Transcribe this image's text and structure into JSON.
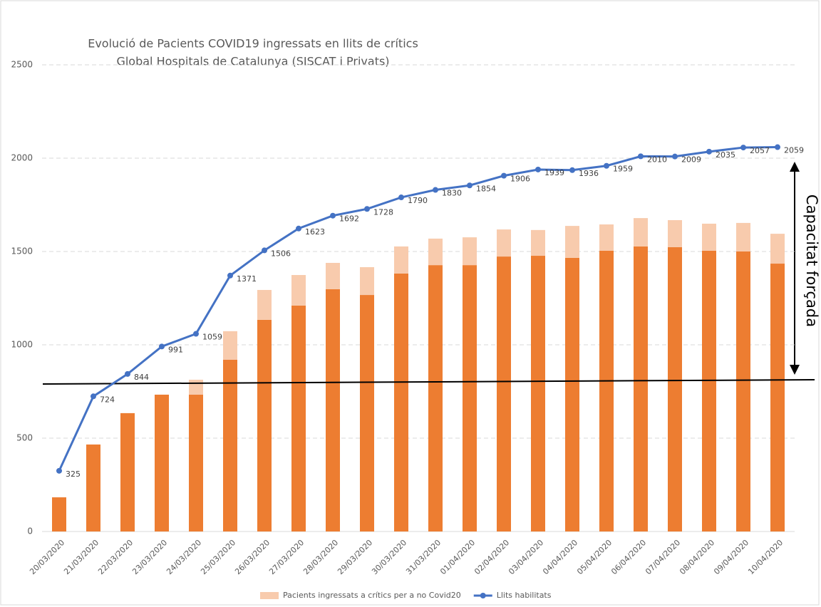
{
  "chart_data": {
    "type": "stacked-bar-line",
    "title": [
      "Evolució de Pacients COVID19 ingressats en llits de crítics",
      "Global Hospitals de Catalunya (SISCAT i Privats)"
    ],
    "categories": [
      "20/03/2020",
      "21/03/2020",
      "22/03/2020",
      "23/03/2020",
      "24/03/2020",
      "25/03/2020",
      "26/03/2020",
      "27/03/2020",
      "28/03/2020",
      "29/03/2020",
      "30/03/2020",
      "31/03/2020",
      "01/04/2020",
      "02/04/2020",
      "03/04/2020",
      "04/04/2020",
      "05/04/2020",
      "06/04/2020",
      "07/04/2020",
      "08/04/2020",
      "09/04/2020",
      "10/04/2020"
    ],
    "series": [
      {
        "color": "#ed7d31",
        "values": [
          183,
          466,
          634,
          733,
          733,
          920,
          1134,
          1210,
          1298,
          1267,
          1382,
          1427,
          1427,
          1473,
          1477,
          1466,
          1504,
          1527,
          1523,
          1504,
          1500,
          1435
        ]
      },
      {
        "name": "Pacients ingressats a crítics per a no Covid20",
        "color": "#f8cbad",
        "values": [
          0,
          0,
          0,
          0,
          80,
          153,
          160,
          164,
          141,
          149,
          145,
          142,
          149,
          145,
          138,
          171,
          141,
          152,
          145,
          145,
          153,
          160
        ]
      },
      {
        "name": "Llits habilitats",
        "type": "line",
        "color": "#4472c4",
        "values": [
          325,
          724,
          844,
          991,
          1059,
          1371,
          1506,
          1623,
          1692,
          1728,
          1790,
          1830,
          1854,
          1906,
          1939,
          1936,
          1959,
          2010,
          2009,
          2035,
          2057,
          2059
        ]
      }
    ],
    "ylim": [
      0,
      2500
    ],
    "yticks": [
      0,
      500,
      1000,
      1500,
      2000,
      2500
    ],
    "grid": true,
    "reference_line": [
      790,
      813
    ],
    "annotation": "Capacitat forçada",
    "legend": "bottom"
  }
}
